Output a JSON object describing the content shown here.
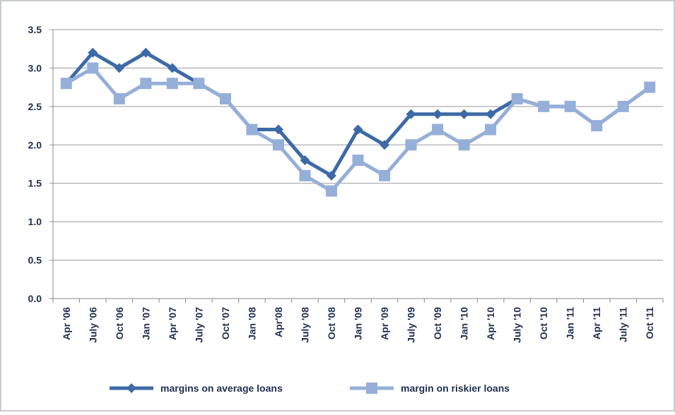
{
  "chart_data": {
    "type": "line",
    "categories": [
      "Apr '06",
      "July '06",
      "Oct '06",
      "Jan '07",
      "Apr '07",
      "July '07",
      "Oct '07",
      "Jan '08",
      "Apr'08",
      "July '08",
      "Oct '08",
      "Jan '09",
      "Apr '09",
      "July '09",
      "Oct '09",
      "Jan '10",
      "Apr '10",
      "July '10",
      "Oct '10",
      "Jan '11",
      "Apr '11",
      "July '11",
      "Oct '11"
    ],
    "series": [
      {
        "name": "margins on average loans",
        "color": "#3d6aa6",
        "marker": "diamond",
        "values": [
          2.8,
          3.2,
          3.0,
          3.2,
          3.0,
          2.8,
          2.6,
          2.2,
          2.2,
          1.8,
          1.6,
          2.2,
          2.0,
          2.4,
          2.4,
          2.4,
          2.4,
          2.6,
          2.5,
          2.5,
          2.25,
          2.5,
          2.75
        ]
      },
      {
        "name": "margin on riskier loans",
        "color": "#95afd8",
        "marker": "square",
        "values": [
          2.8,
          3.0,
          2.6,
          2.8,
          2.8,
          2.8,
          2.6,
          2.2,
          2.0,
          1.6,
          1.4,
          1.8,
          1.6,
          2.0,
          2.2,
          2.0,
          2.2,
          2.6,
          2.5,
          2.5,
          2.25,
          2.5,
          2.75
        ]
      }
    ],
    "ylim": [
      0,
      3.5
    ],
    "yticks": [
      {
        "value": 0,
        "label": "0.0"
      },
      0.5,
      {
        "value": 1,
        "label": "1.0"
      },
      1.5,
      {
        "value": 2,
        "label": "2.0"
      },
      2.5,
      {
        "value": 3,
        "label": "3.0"
      },
      3.5
    ],
    "grid": true,
    "legend": "bottom"
  }
}
